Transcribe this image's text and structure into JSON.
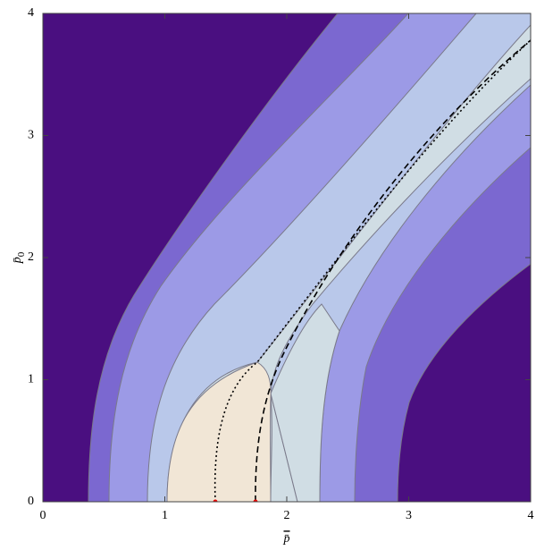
{
  "chart_data": {
    "type": "contour",
    "x_label": "p̄",
    "y_label": "p̄",
    "y_label_subscript": "0",
    "xlim": [
      0,
      4
    ],
    "ylim": [
      0,
      4
    ],
    "xticks": [
      0,
      1,
      2,
      3,
      4
    ],
    "yticks": [
      0,
      1,
      2,
      3,
      4
    ]
  }
}
